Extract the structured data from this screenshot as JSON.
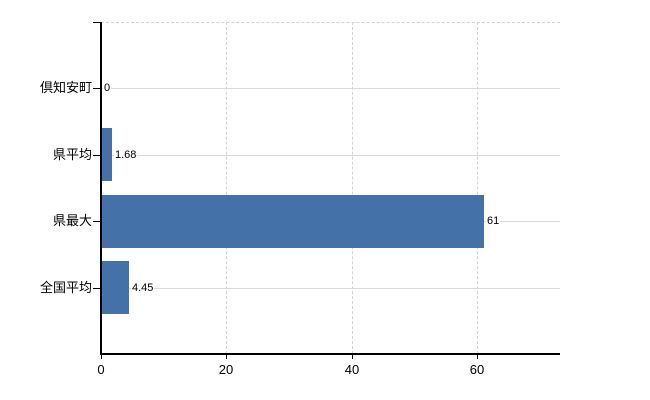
{
  "chart_data": {
    "type": "bar",
    "orientation": "horizontal",
    "title": "",
    "xlabel": "",
    "ylabel": "",
    "categories": [
      "倶知安町",
      "県平均",
      "県最大",
      "全国平均"
    ],
    "values": [
      0,
      1.68,
      61,
      4.45
    ],
    "value_labels": [
      "0",
      "1.68",
      "61",
      "4.45"
    ],
    "x_ticks": [
      0,
      20,
      40,
      60
    ],
    "x_tick_labels": [
      "0",
      "20",
      "40",
      "60"
    ],
    "xlim": [
      0,
      73.2
    ],
    "grid": true,
    "legend": "none",
    "colors": {
      "bar": "#4472a8",
      "gridline_horizontal": "#d6ddd4",
      "gridline_vertical": "#d6d1d8",
      "axis": "#000000",
      "text": "#000000",
      "background": "#ffffff"
    }
  }
}
